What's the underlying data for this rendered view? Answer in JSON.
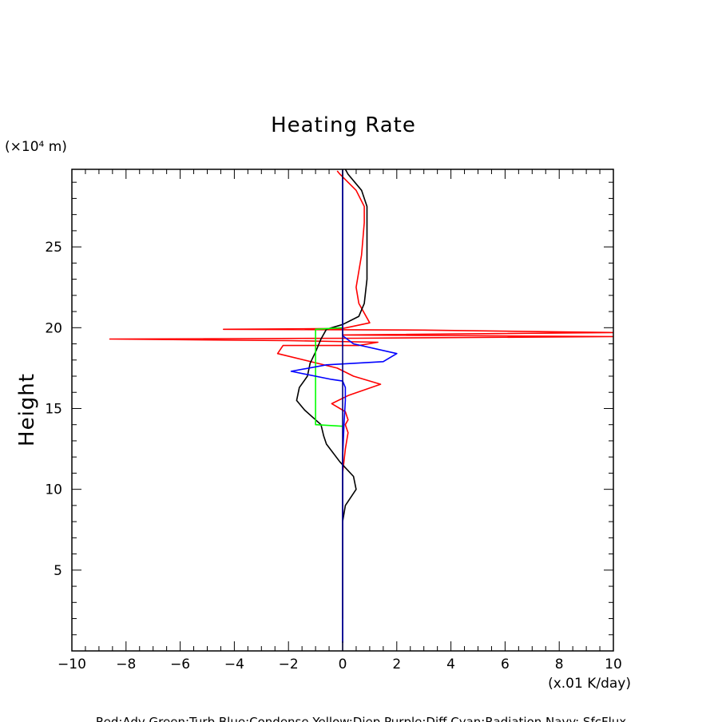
{
  "chart_data": {
    "type": "line",
    "title": "Heating Rate",
    "ylabel": "Height",
    "y_unit": "(×10⁴ m)",
    "x_unit": "(x.01 K/day)",
    "xlim": [
      -10,
      10
    ],
    "ylim": [
      0,
      29.8
    ],
    "x_ticks": [
      -10,
      -8,
      -6,
      -4,
      -2,
      0,
      2,
      4,
      6,
      8,
      10
    ],
    "y_ticks": [
      5,
      10,
      15,
      20,
      25
    ],
    "legend_text": "Red:Adv  Green:Turb  Blue:Condense  Yellow:Diep  Purple:Diff  Cyan:Radiation  Navy: SfcFlux",
    "series": [
      {
        "color": "#ff0000",
        "points": [
          [
            0,
            2
          ],
          [
            0,
            5
          ],
          [
            0,
            7
          ],
          [
            0,
            9
          ],
          [
            0,
            11
          ],
          [
            0.1,
            12.5
          ],
          [
            0.2,
            13.5
          ],
          [
            0.1,
            14
          ],
          [
            0.2,
            14.3
          ],
          [
            0.1,
            14.8
          ],
          [
            -0.4,
            15.3
          ],
          [
            0.2,
            15.8
          ],
          [
            1.4,
            16.5
          ],
          [
            0.4,
            17
          ],
          [
            -0.2,
            17.5
          ],
          [
            -2.4,
            18.4
          ],
          [
            -2.2,
            18.9
          ],
          [
            0.6,
            18.9
          ],
          [
            1.3,
            19.1
          ],
          [
            -2.0,
            19.2
          ],
          [
            -8.6,
            19.3
          ],
          [
            0.5,
            19.35
          ],
          [
            10,
            19.45
          ],
          [
            0,
            19.55
          ],
          [
            10,
            19.7
          ],
          [
            3,
            19.85
          ],
          [
            -4.4,
            19.9
          ],
          [
            0,
            19.95
          ],
          [
            1.0,
            20.3
          ],
          [
            0.6,
            21.5
          ],
          [
            0.5,
            22.5
          ],
          [
            0.7,
            24.5
          ],
          [
            0.8,
            26.5
          ],
          [
            0.8,
            27.5
          ],
          [
            0.5,
            28.5
          ],
          [
            -0.1,
            29.5
          ],
          [
            -0.2,
            29.7
          ]
        ]
      },
      {
        "color": "#000000",
        "points": [
          [
            0,
            8
          ],
          [
            0.1,
            9
          ],
          [
            0.5,
            10
          ],
          [
            0.4,
            10.8
          ],
          [
            -0.1,
            11.7
          ],
          [
            -0.6,
            12.8
          ],
          [
            -0.7,
            13.3
          ],
          [
            -0.8,
            14
          ],
          [
            -1.4,
            14.9
          ],
          [
            -1.7,
            15.5
          ],
          [
            -1.6,
            16.3
          ],
          [
            -1.3,
            17
          ],
          [
            -1.2,
            17.8
          ],
          [
            -1.0,
            18.5
          ],
          [
            -0.8,
            19.3
          ],
          [
            -0.6,
            19.9
          ],
          [
            0,
            20.2
          ],
          [
            0.6,
            20.7
          ],
          [
            0.8,
            21.5
          ],
          [
            0.9,
            23
          ],
          [
            0.9,
            26
          ],
          [
            0.9,
            27.5
          ],
          [
            0.7,
            28.5
          ],
          [
            0.2,
            29.5
          ],
          [
            0.1,
            29.8
          ]
        ]
      },
      {
        "color": "#00ff00",
        "points": [
          [
            0,
            13.9
          ],
          [
            -1.0,
            14
          ],
          [
            -1.0,
            15
          ],
          [
            -1.0,
            18
          ],
          [
            -1.0,
            19.9
          ],
          [
            0,
            20
          ]
        ]
      },
      {
        "color": "#0000ff",
        "points": [
          [
            0,
            0.5
          ],
          [
            0,
            12
          ],
          [
            0.05,
            14
          ],
          [
            0.1,
            15.5
          ],
          [
            0.1,
            16.3
          ],
          [
            0,
            16.7
          ],
          [
            -0.4,
            16.8
          ],
          [
            -1.9,
            17.3
          ],
          [
            -0.6,
            17.7
          ],
          [
            1.5,
            17.9
          ],
          [
            2.0,
            18.4
          ],
          [
            0.4,
            19
          ],
          [
            0,
            19.5
          ],
          [
            0,
            29.8
          ]
        ]
      },
      {
        "color": "#00007f",
        "points": [
          [
            0,
            0
          ],
          [
            0,
            29.8
          ]
        ]
      }
    ]
  }
}
